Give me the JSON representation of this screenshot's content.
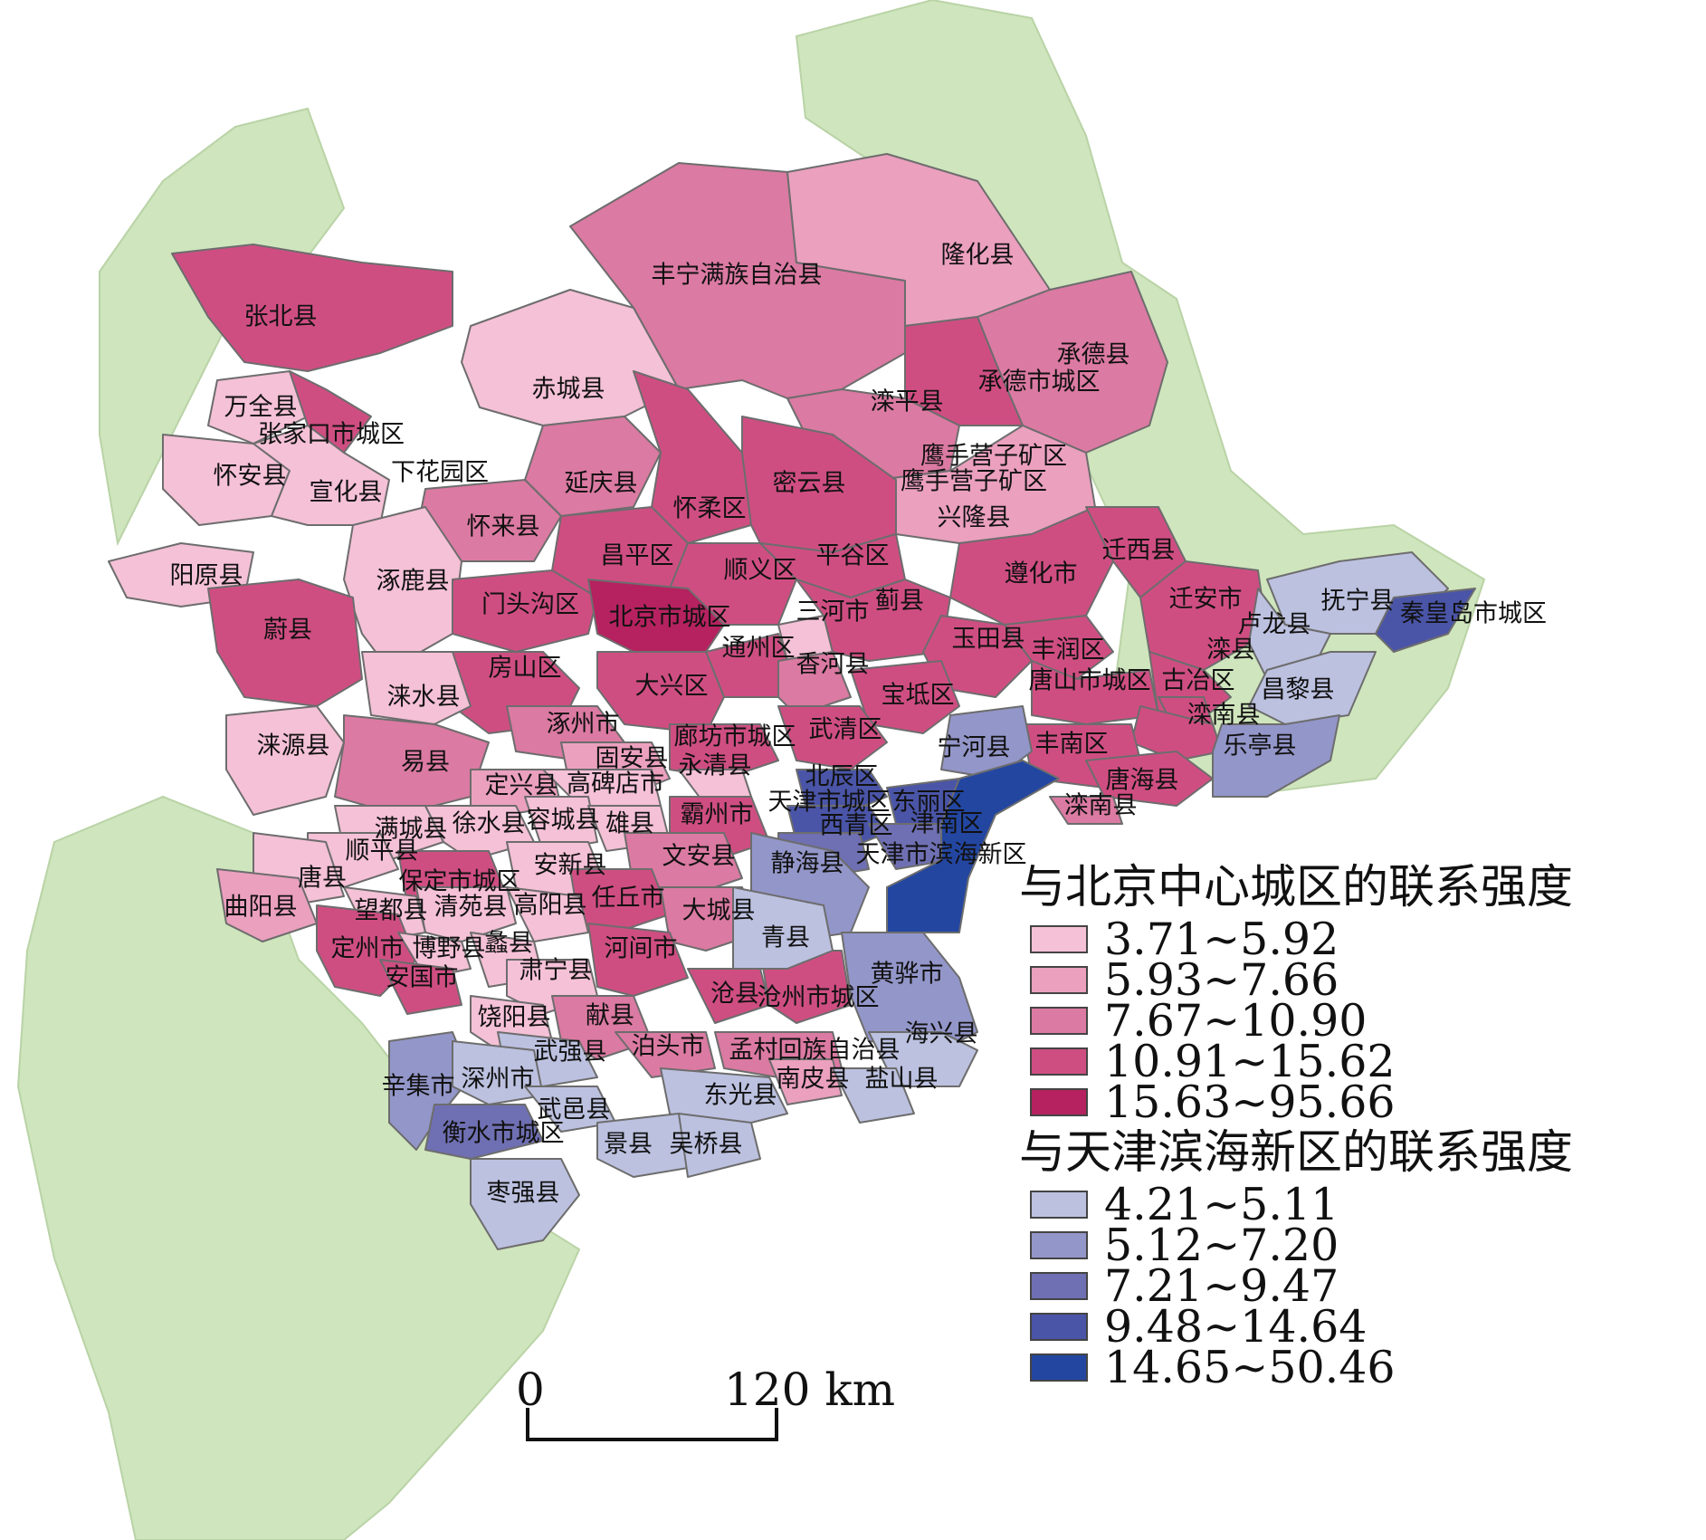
{
  "map": {
    "place_labels": [
      "丰宁满族自治县",
      "隆化县",
      "张北县",
      "赤城县",
      "承德县",
      "承德市城区",
      "滦平县",
      "万全县",
      "张家口市城区",
      "怀安县",
      "下花园区",
      "宣化县",
      "鹰手营子矿区",
      "鹰手营子矿区",
      "延庆县",
      "密云县",
      "怀柔区",
      "兴隆县",
      "怀来县",
      "迁西县",
      "昌平区",
      "平谷区",
      "遵化市",
      "顺义区",
      "阳原县",
      "涿鹿县",
      "门头沟区",
      "北京市城区",
      "三河市",
      "蓟县",
      "迁安市",
      "抚宁县",
      "秦皇岛市城区",
      "卢龙县",
      "蔚县",
      "通州区",
      "玉田县",
      "丰润区",
      "香河县",
      "房山区",
      "滦县",
      "大兴区",
      "宝坻区",
      "唐山市城区",
      "古冶区",
      "昌黎县",
      "涞水县",
      "涿州市",
      "滦南县",
      "廊坊市城区",
      "武清区",
      "宁河县",
      "丰南区",
      "乐亭县",
      "涞源县",
      "易县",
      "固安县",
      "永清县",
      "北辰区",
      "定兴县",
      "高碑店市",
      "唐海县",
      "滦南县",
      "天津市城区",
      "东丽区",
      "满城县",
      "徐水县",
      "容城县",
      "雄县",
      "霸州市",
      "西青区",
      "津南区",
      "顺平县",
      "天津市滨海新区",
      "安新县",
      "文安县",
      "静海县",
      "唐县",
      "保定市城区",
      "曲阳县",
      "任丘市",
      "望都县",
      "清苑县",
      "高阳县",
      "大城县",
      "青县",
      "定州市",
      "博野县",
      "蠡县",
      "河间市",
      "安国市",
      "肃宁县",
      "黄骅市",
      "沧县",
      "沧州市城区",
      "饶阳县",
      "献县",
      "海兴县",
      "武强县",
      "泊头市",
      "孟村回族自治县",
      "辛集市",
      "深州市",
      "南皮县",
      "盐山县",
      "东光县",
      "武邑县",
      "衡水市城区",
      "景县",
      "吴桥县",
      "枣强县"
    ]
  },
  "legend": {
    "beijing": {
      "title": "与北京中心城区的联系强度",
      "classes": [
        {
          "label": "3.71~5.92",
          "color": "#f5c1d6"
        },
        {
          "label": "5.93~7.66",
          "color": "#eba0be"
        },
        {
          "label": "7.67~10.90",
          "color": "#db7aa2"
        },
        {
          "label": "10.91~15.62",
          "color": "#cf4e82"
        },
        {
          "label": "15.63~95.66",
          "color": "#b5225f"
        }
      ]
    },
    "binhai": {
      "title": "与天津滨海新区的联系强度",
      "classes": [
        {
          "label": "4.21~5.11",
          "color": "#bcc1e0"
        },
        {
          "label": "5.12~7.20",
          "color": "#9396c9"
        },
        {
          "label": "7.21~9.47",
          "color": "#6f6fb3"
        },
        {
          "label": "9.48~14.64",
          "color": "#4a55a8"
        },
        {
          "label": "14.65~50.46",
          "color": "#2346a1"
        }
      ]
    }
  },
  "scale_bar": {
    "start_label": "0",
    "end_label": "120 km"
  },
  "colors": {
    "outside_region": "#cfe5bd",
    "boundary": "#6d6d6d"
  }
}
